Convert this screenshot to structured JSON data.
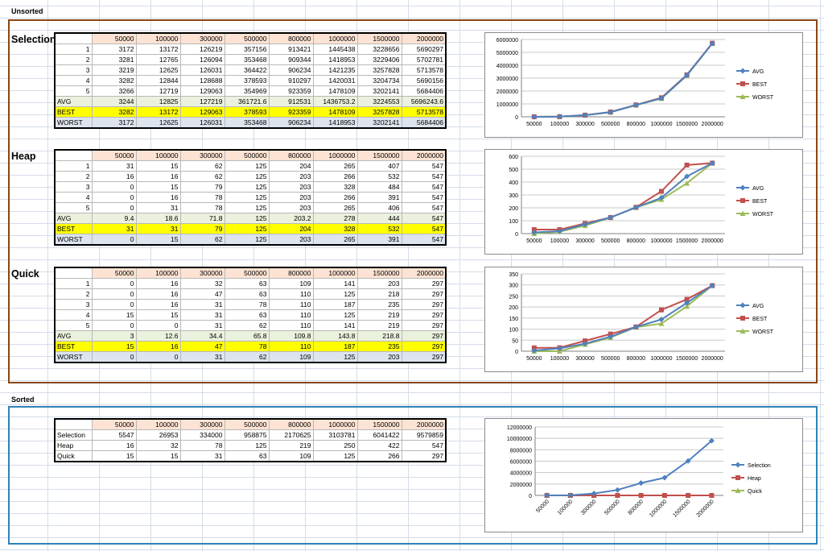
{
  "sections": {
    "unsorted_label": "Unsorted",
    "sorted_label": "Sorted"
  },
  "colors": {
    "avg": "#4f81bd",
    "best": "#c0504d",
    "worst": "#9bbb59",
    "header": "#fde3d3",
    "avg_row": "#eaf1dd",
    "best_row": "#ffff00",
    "worst_row": "#dde4ee",
    "unsorted_frame": "#8b4513",
    "sorted_frame": "#2e83b8"
  },
  "unsorted": [
    {
      "name": "Selection",
      "headers": [
        "50000",
        "100000",
        "300000",
        "500000",
        "800000",
        "1000000",
        "1500000",
        "2000000"
      ],
      "rows": [
        {
          "label": "1",
          "values": [
            "3172",
            "13172",
            "126219",
            "357156",
            "913421",
            "1445438",
            "3228656",
            "5690297"
          ]
        },
        {
          "label": "2",
          "values": [
            "3281",
            "12765",
            "126094",
            "353468",
            "909344",
            "1418953",
            "3229406",
            "5702781"
          ]
        },
        {
          "label": "3",
          "values": [
            "3219",
            "12625",
            "126031",
            "364422",
            "906234",
            "1421235",
            "3257828",
            "5713578"
          ]
        },
        {
          "label": "4",
          "values": [
            "3282",
            "12844",
            "128688",
            "378593",
            "910297",
            "1420031",
            "3204734",
            "5690156"
          ]
        },
        {
          "label": "5",
          "values": [
            "3266",
            "12719",
            "129063",
            "354969",
            "923359",
            "1478109",
            "3202141",
            "5684406"
          ]
        }
      ],
      "avg": {
        "label": "AVG",
        "values": [
          "3244",
          "12825",
          "127219",
          "361721.6",
          "912531",
          "1436753.2",
          "3224553",
          "5696243.6"
        ]
      },
      "best": {
        "label": "BEST",
        "values": [
          "3282",
          "13172",
          "129063",
          "378593",
          "923359",
          "1478109",
          "3257828",
          "5713578"
        ]
      },
      "worst": {
        "label": "WORST",
        "values": [
          "3172",
          "12625",
          "126031",
          "353468",
          "906234",
          "1418953",
          "3202141",
          "5684406"
        ]
      },
      "chart_data": {
        "type": "line",
        "categories": [
          "50000",
          "100000",
          "300000",
          "500000",
          "800000",
          "1000000",
          "1500000",
          "2000000"
        ],
        "ylim": [
          0,
          6000000
        ],
        "yticks": [
          "0",
          "1000000",
          "2000000",
          "3000000",
          "4000000",
          "5000000",
          "6000000"
        ],
        "series": [
          {
            "name": "AVG",
            "values": [
              3244,
              12825,
              127219,
              361721.6,
              912531,
              1436753.2,
              3224553,
              5696243.6
            ]
          },
          {
            "name": "BEST",
            "values": [
              3282,
              13172,
              129063,
              378593,
              923359,
              1478109,
              3257828,
              5713578
            ]
          },
          {
            "name": "WORST",
            "values": [
              3172,
              12625,
              126031,
              353468,
              906234,
              1418953,
              3202141,
              5684406
            ]
          }
        ],
        "legend": "right"
      }
    },
    {
      "name": "Heap",
      "headers": [
        "50000",
        "100000",
        "300000",
        "500000",
        "800000",
        "1000000",
        "1500000",
        "2000000"
      ],
      "rows": [
        {
          "label": "1",
          "values": [
            "31",
            "15",
            "62",
            "125",
            "204",
            "265",
            "407",
            "547"
          ]
        },
        {
          "label": "2",
          "values": [
            "16",
            "16",
            "62",
            "125",
            "203",
            "266",
            "532",
            "547"
          ]
        },
        {
          "label": "3",
          "values": [
            "0",
            "15",
            "79",
            "125",
            "203",
            "328",
            "484",
            "547"
          ]
        },
        {
          "label": "4",
          "values": [
            "0",
            "16",
            "78",
            "125",
            "203",
            "266",
            "391",
            "547"
          ]
        },
        {
          "label": "5",
          "values": [
            "0",
            "31",
            "78",
            "125",
            "203",
            "265",
            "406",
            "547"
          ]
        }
      ],
      "avg": {
        "label": "AVG",
        "values": [
          "9.4",
          "18.6",
          "71.8",
          "125",
          "203.2",
          "278",
          "444",
          "547"
        ]
      },
      "best": {
        "label": "BEST",
        "values": [
          "31",
          "31",
          "79",
          "125",
          "204",
          "328",
          "532",
          "547"
        ]
      },
      "worst": {
        "label": "WORST",
        "values": [
          "0",
          "15",
          "62",
          "125",
          "203",
          "265",
          "391",
          "547"
        ]
      },
      "chart_data": {
        "type": "line",
        "categories": [
          "50000",
          "100000",
          "300000",
          "500000",
          "800000",
          "1000000",
          "1500000",
          "2000000"
        ],
        "ylim": [
          0,
          600
        ],
        "yticks": [
          "0",
          "100",
          "200",
          "300",
          "400",
          "500",
          "600"
        ],
        "series": [
          {
            "name": "AVG",
            "values": [
              9.4,
              18.6,
              71.8,
              125,
              203.2,
              278,
              444,
              547
            ]
          },
          {
            "name": "BEST",
            "values": [
              31,
              31,
              79,
              125,
              204,
              328,
              532,
              547
            ]
          },
          {
            "name": "WORST",
            "values": [
              0,
              15,
              62,
              125,
              203,
              265,
              391,
              547
            ]
          }
        ],
        "legend": "right"
      }
    },
    {
      "name": "Quick",
      "headers": [
        "50000",
        "100000",
        "300000",
        "500000",
        "800000",
        "1000000",
        "1500000",
        "2000000"
      ],
      "rows": [
        {
          "label": "1",
          "values": [
            "0",
            "16",
            "32",
            "63",
            "109",
            "141",
            "203",
            "297"
          ]
        },
        {
          "label": "2",
          "values": [
            "0",
            "16",
            "47",
            "63",
            "110",
            "125",
            "218",
            "297"
          ]
        },
        {
          "label": "3",
          "values": [
            "0",
            "16",
            "31",
            "78",
            "110",
            "187",
            "235",
            "297"
          ]
        },
        {
          "label": "4",
          "values": [
            "15",
            "15",
            "31",
            "63",
            "110",
            "125",
            "219",
            "297"
          ]
        },
        {
          "label": "5",
          "values": [
            "0",
            "0",
            "31",
            "62",
            "110",
            "141",
            "219",
            "297"
          ]
        }
      ],
      "avg": {
        "label": "AVG",
        "values": [
          "3",
          "12.6",
          "34.4",
          "65.8",
          "109.8",
          "143.8",
          "218.8",
          "297"
        ]
      },
      "best": {
        "label": "BEST",
        "values": [
          "15",
          "16",
          "47",
          "78",
          "110",
          "187",
          "235",
          "297"
        ]
      },
      "worst": {
        "label": "WORST",
        "values": [
          "0",
          "0",
          "31",
          "62",
          "109",
          "125",
          "203",
          "297"
        ]
      },
      "chart_data": {
        "type": "line",
        "categories": [
          "50000",
          "100000",
          "300000",
          "500000",
          "800000",
          "1000000",
          "1500000",
          "2000000"
        ],
        "ylim": [
          0,
          350
        ],
        "yticks": [
          "0",
          "50",
          "100",
          "150",
          "200",
          "250",
          "300",
          "350"
        ],
        "series": [
          {
            "name": "AVG",
            "values": [
              3,
              12.6,
              34.4,
              65.8,
              109.8,
              143.8,
              218.8,
              297
            ]
          },
          {
            "name": "BEST",
            "values": [
              15,
              16,
              47,
              78,
              110,
              187,
              235,
              297
            ]
          },
          {
            "name": "WORST",
            "values": [
              0,
              0,
              31,
              62,
              109,
              125,
              203,
              297
            ]
          }
        ],
        "legend": "right"
      }
    }
  ],
  "sorted": {
    "headers": [
      "50000",
      "100000",
      "300000",
      "500000",
      "800000",
      "1000000",
      "1500000",
      "2000000"
    ],
    "rows": [
      {
        "label": "Selection",
        "values": [
          "5547",
          "26953",
          "334000",
          "958875",
          "2170625",
          "3103781",
          "6041422",
          "9579859"
        ]
      },
      {
        "label": "Heap",
        "values": [
          "16",
          "32",
          "78",
          "125",
          "219",
          "250",
          "422",
          "547"
        ]
      },
      {
        "label": "Quick",
        "values": [
          "15",
          "15",
          "31",
          "63",
          "109",
          "125",
          "266",
          "297"
        ]
      }
    ],
    "chart_data": {
      "type": "line",
      "categories": [
        "50000",
        "100000",
        "300000",
        "500000",
        "800000",
        "1000000",
        "1500000",
        "2000000"
      ],
      "ylim": [
        0,
        12000000
      ],
      "yticks": [
        "0",
        "2000000",
        "4000000",
        "6000000",
        "8000000",
        "10000000",
        "12000000"
      ],
      "series": [
        {
          "name": "Selection",
          "values": [
            5547,
            26953,
            334000,
            958875,
            2170625,
            3103781,
            6041422,
            9579859
          ]
        },
        {
          "name": "Heap",
          "values": [
            16,
            32,
            78,
            125,
            219,
            250,
            422,
            547
          ]
        },
        {
          "name": "Quick",
          "values": [
            15,
            15,
            31,
            63,
            109,
            125,
            266,
            297
          ]
        }
      ],
      "legend": "right",
      "x_tick_rotation": "diagonal"
    }
  }
}
